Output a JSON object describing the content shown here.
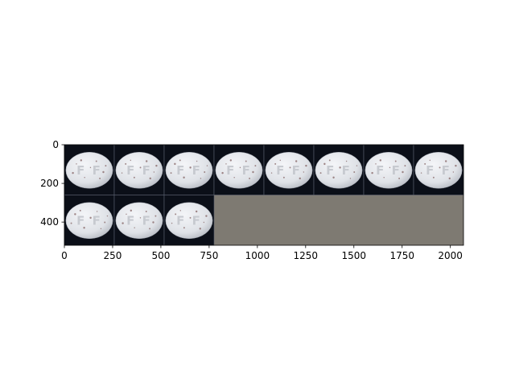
{
  "figure": {
    "background_color": "#ffffff"
  },
  "chart_data": {
    "type": "image",
    "title": "",
    "xlabel": "",
    "ylabel": "",
    "xlim": [
      0,
      2068
    ],
    "ylim": [
      520,
      0
    ],
    "x_ticks": [
      0,
      250,
      500,
      750,
      1000,
      1250,
      1500,
      1750,
      2000
    ],
    "y_ticks": [
      0,
      200,
      400
    ],
    "grid": false,
    "legend": "none",
    "image_grid": {
      "columns": 8,
      "rows": 2,
      "cell_width": 258.5,
      "cell_height": 260,
      "tile_count": 11,
      "tile_description": "white oval pill with embossed FF marking on dark background",
      "tile_background_color": "#0b0f18",
      "pill_color": "#e4e6ea",
      "speckle_color": "#8a6a6a",
      "separator_color": "#5a6070",
      "empty_fill_color": "#7e7a72"
    }
  }
}
